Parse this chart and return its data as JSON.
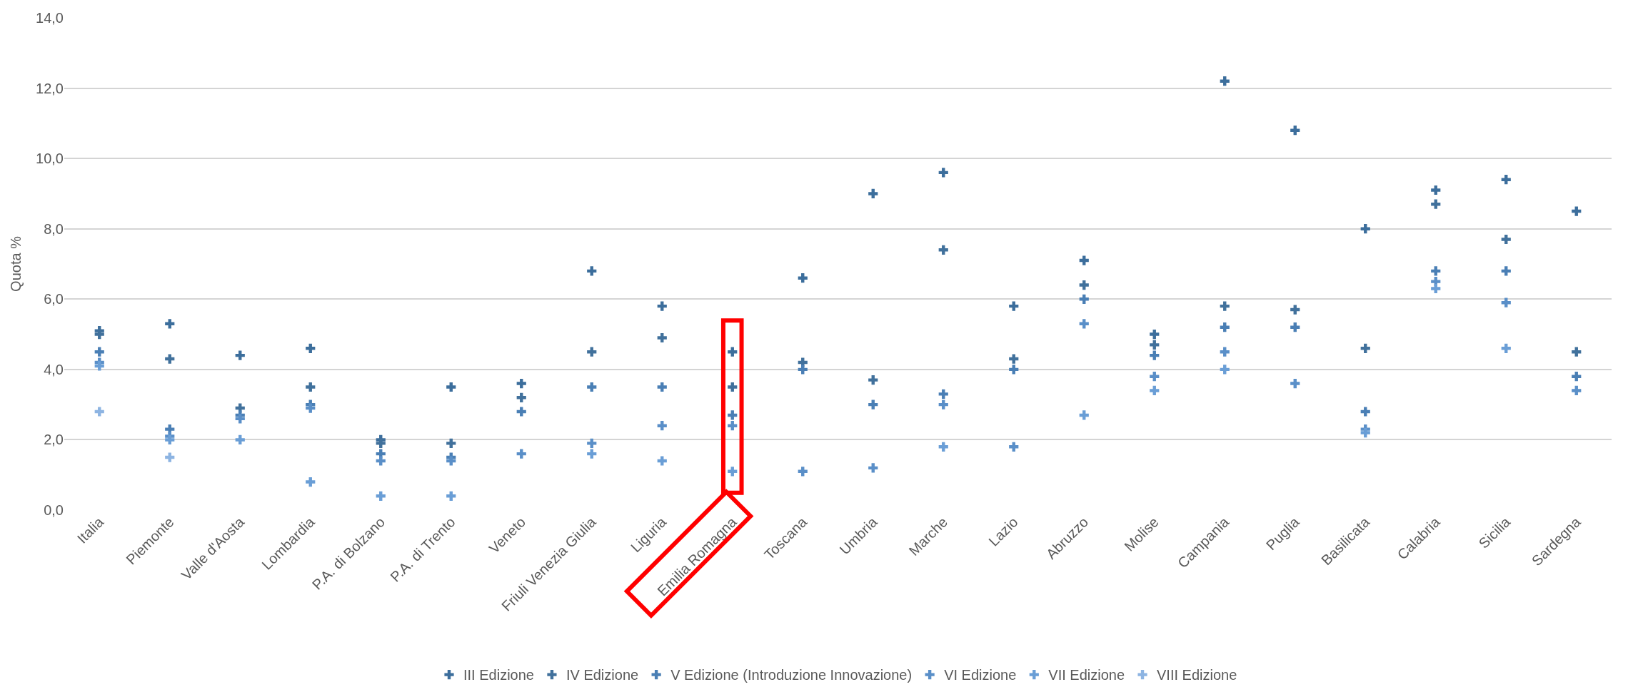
{
  "chart_data": {
    "type": "scatter",
    "ylabel": "Quota %",
    "categories": [
      "Italia",
      "Piemonte",
      "Valle d'Aosta",
      "Lombardia",
      "P.A. di Bolzano",
      "P.A. di Trento",
      "Veneto",
      "Friuli Venezia Giulia",
      "Liguria",
      "Emilia Romagna",
      "Toscana",
      "Umbria",
      "Marche",
      "Lazio",
      "Abruzzo",
      "Molise",
      "Campania",
      "Puglia",
      "Basilicata",
      "Calabria",
      "Sicilia",
      "Sardegna"
    ],
    "series": [
      {
        "name": "III Edizione",
        "color": "#3c6e9c",
        "values": [
          5.1,
          5.3,
          4.4,
          4.6,
          2.0,
          3.5,
          3.6,
          6.8,
          5.8,
          4.5,
          6.6,
          9.0,
          9.6,
          5.8,
          7.1,
          5.0,
          12.2,
          10.8,
          8.0,
          9.1,
          9.4,
          8.5
        ]
      },
      {
        "name": "IV Edizione",
        "color": "#41719c",
        "values": [
          5.0,
          4.3,
          2.9,
          3.5,
          1.9,
          1.9,
          3.2,
          4.5,
          4.9,
          3.5,
          4.2,
          3.7,
          7.4,
          4.3,
          6.4,
          4.7,
          5.8,
          5.7,
          4.6,
          8.7,
          7.7,
          4.5
        ]
      },
      {
        "name": "V Edizione (Introduzione Innovazione)",
        "color": "#4a7fb5",
        "values": [
          4.5,
          2.3,
          2.7,
          3.0,
          1.6,
          1.5,
          2.8,
          3.5,
          3.5,
          2.7,
          4.0,
          3.0,
          3.3,
          4.0,
          6.0,
          4.4,
          5.2,
          5.2,
          2.8,
          6.8,
          6.8,
          3.8
        ]
      },
      {
        "name": "VI Edizione",
        "color": "#5a8fc8",
        "values": [
          4.2,
          2.1,
          2.6,
          2.9,
          1.4,
          1.4,
          1.6,
          1.9,
          2.4,
          2.4,
          1.1,
          1.2,
          3.0,
          1.8,
          5.3,
          3.8,
          4.5,
          3.6,
          2.3,
          6.5,
          5.9,
          3.4
        ]
      },
      {
        "name": "VII Edizione",
        "color": "#6a9ed6",
        "values": [
          4.1,
          2.0,
          2.0,
          0.8,
          0.4,
          0.4,
          null,
          1.6,
          1.4,
          1.1,
          null,
          null,
          1.8,
          null,
          2.7,
          3.4,
          4.0,
          null,
          2.2,
          6.3,
          4.6,
          null
        ]
      },
      {
        "name": "VIII Edizione",
        "color": "#8db4e2",
        "values": [
          2.8,
          1.5,
          null,
          null,
          null,
          null,
          null,
          null,
          null,
          null,
          null,
          null,
          null,
          null,
          null,
          null,
          null,
          null,
          null,
          null,
          null,
          null
        ]
      }
    ],
    "ylim": [
      0,
      14
    ],
    "yticks": [
      {
        "value": 0,
        "label": "0,0"
      },
      {
        "value": 2,
        "label": "2,0"
      },
      {
        "value": 4,
        "label": "4,0"
      },
      {
        "value": 6,
        "label": "6,0"
      },
      {
        "value": 8,
        "label": "8,0"
      },
      {
        "value": 10,
        "label": "10,0"
      },
      {
        "value": 12,
        "label": "12,0"
      },
      {
        "value": 14,
        "label": "14,0"
      }
    ],
    "grid": "y",
    "legend": "bottom",
    "marker": "cross"
  }
}
